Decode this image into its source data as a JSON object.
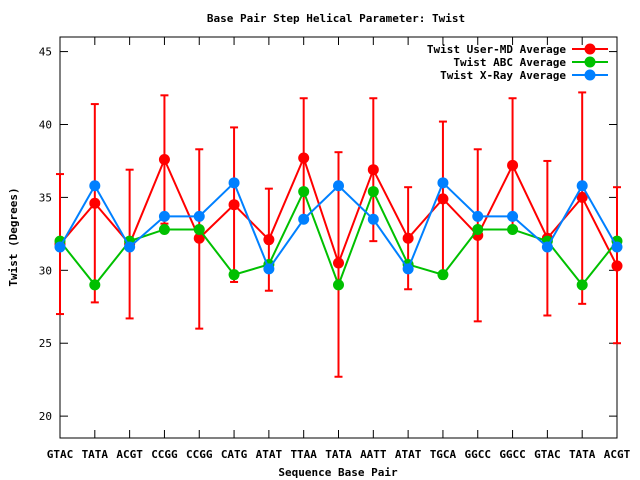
{
  "chart_data": {
    "type": "line",
    "title": "Base Pair Step Helical Parameter: Twist",
    "xlabel": "Sequence Base Pair",
    "ylabel": "Twist (Degrees)",
    "ylim": [
      18.5,
      46
    ],
    "yticks": [
      20,
      25,
      30,
      35,
      40,
      45
    ],
    "grid": false,
    "legend": "top-right",
    "categories": [
      "GTAC",
      "TATA",
      "ACGT",
      "CCGG",
      "CCGG",
      "CATG",
      "ATAT",
      "TTAA",
      "TATA",
      "AATT",
      "ATAT",
      "TGCA",
      "GGCC",
      "GGCC",
      "GTAC",
      "TATA",
      "ACGT"
    ],
    "series": [
      {
        "name": "Twist User-MD Average",
        "color": "#ff0000",
        "errorbars": true,
        "values": [
          31.8,
          34.6,
          31.8,
          37.6,
          32.2,
          34.5,
          32.1,
          37.7,
          30.5,
          36.9,
          32.2,
          34.9,
          32.4,
          37.2,
          32.2,
          35.0,
          30.3
        ],
        "err_low": [
          27.0,
          27.8,
          26.7,
          33.2,
          26.0,
          29.2,
          28.6,
          33.7,
          22.7,
          32.0,
          28.7,
          29.5,
          26.5,
          32.7,
          26.9,
          27.7,
          25.0
        ],
        "err_high": [
          36.6,
          41.4,
          36.9,
          42.0,
          38.3,
          39.8,
          35.6,
          41.8,
          38.1,
          41.8,
          35.7,
          40.2,
          38.3,
          41.8,
          37.5,
          42.2,
          35.7
        ]
      },
      {
        "name": "Twist ABC Average",
        "color": "#00c000",
        "errorbars": false,
        "values": [
          32.0,
          29.0,
          32.0,
          32.8,
          32.8,
          29.7,
          30.4,
          35.4,
          29.0,
          35.4,
          30.4,
          29.7,
          32.8,
          32.8,
          32.0,
          29.0,
          32.0
        ]
      },
      {
        "name": "Twist X-Ray Average",
        "color": "#0080ff",
        "errorbars": false,
        "values": [
          31.6,
          35.8,
          31.6,
          33.7,
          33.7,
          36.0,
          30.1,
          33.5,
          35.8,
          33.5,
          30.1,
          36.0,
          33.7,
          33.7,
          31.6,
          35.8,
          31.6
        ]
      }
    ]
  }
}
